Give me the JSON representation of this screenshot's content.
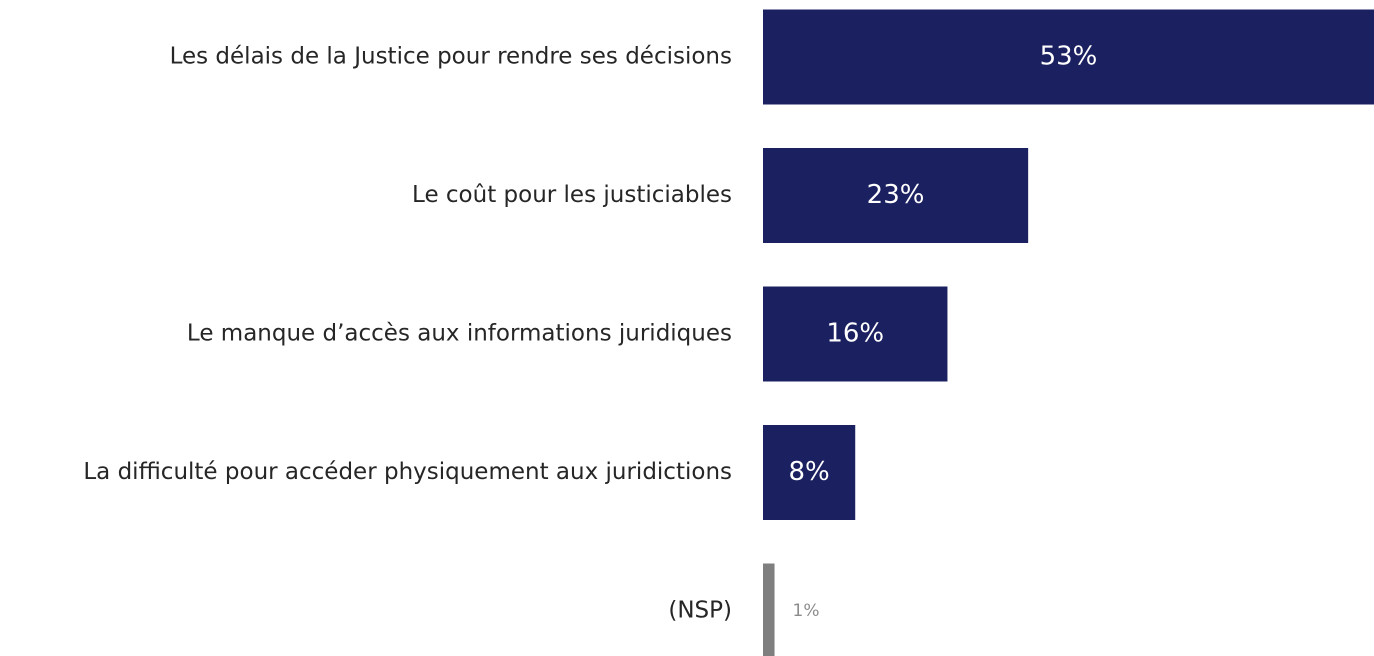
{
  "chart_data": {
    "type": "bar",
    "orientation": "horizontal",
    "categories": [
      "Les délais de la Justice pour rendre ses décisions",
      "Le coût pour les justiciables",
      "Le manque d’accès aux informations juridiques",
      "La difficulté pour accéder physiquement aux juridictions",
      "(NSP)"
    ],
    "values": [
      53,
      23,
      16,
      8,
      1
    ],
    "value_labels": [
      "53%",
      "23%",
      "16%",
      "8%",
      "1%"
    ],
    "colors": [
      "#1b2060",
      "#1b2060",
      "#1b2060",
      "#1b2060",
      "#7f7f7f"
    ]
  }
}
